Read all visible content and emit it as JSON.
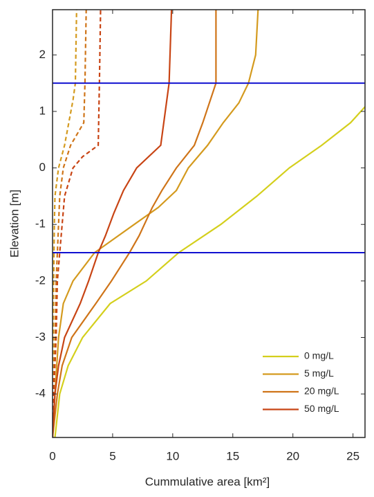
{
  "chart_data": {
    "type": "line",
    "xlabel": "Cummulative area [km²]",
    "ylabel": "Elevation [m]",
    "xlim": [
      0,
      26
    ],
    "ylim": [
      -4.77,
      2.8
    ],
    "xticks": [
      0,
      5,
      10,
      15,
      20,
      25
    ],
    "yticks": [
      -4,
      -3,
      -2,
      -1,
      0,
      1,
      2
    ],
    "hlines": {
      "color": "#1010d0",
      "values": [
        1.5,
        -1.5
      ]
    },
    "legend": "lower right",
    "series": [
      {
        "name": "0 mg/L",
        "color": "#d4cf1c",
        "x": [
          0.2,
          0.6,
          1.3,
          2.5,
          4.8,
          7.8,
          10.5,
          14,
          17,
          19.7,
          22.4,
          24.8,
          26.5,
          26.7,
          26.8,
          26.8
        ],
        "y": [
          -4.77,
          -4,
          -3.5,
          -3,
          -2.4,
          -2,
          -1.5,
          -1,
          -0.5,
          0,
          0.4,
          0.8,
          1.2,
          1.5,
          2,
          2.8
        ]
      },
      {
        "name": "5 mg/L",
        "color": "#d49a1e",
        "x": [
          0,
          0.2,
          0.5,
          0.9,
          1.7,
          3.5,
          6.8,
          8.8,
          10.3,
          11.3,
          12.9,
          14.2,
          15.5,
          16.3,
          16.9,
          17.1
        ],
        "y": [
          -4.77,
          -4,
          -3,
          -2.4,
          -2,
          -1.5,
          -1,
          -0.7,
          -0.4,
          0,
          0.4,
          0.8,
          1.15,
          1.5,
          2,
          2.8
        ]
      },
      {
        "name": "20 mg/L",
        "color": "#cf7418",
        "x": [
          0,
          0.4,
          0.8,
          1.6,
          3.6,
          4.9,
          6.4,
          7.2,
          8.3,
          9.1,
          10.3,
          11.8,
          12.5,
          13.6,
          13.6
        ],
        "y": [
          -4.77,
          -4,
          -3.5,
          -3,
          -2.4,
          -2,
          -1.5,
          -1.2,
          -0.7,
          -0.4,
          0,
          0.4,
          0.8,
          1.5,
          2.8
        ]
      },
      {
        "name": "50 mg/L",
        "color": "#c84414",
        "x": [
          0,
          0.2,
          0.5,
          1,
          2.3,
          3,
          3.8,
          4.4,
          5.1,
          5.9,
          7,
          9,
          9.7,
          9.9
        ],
        "y": [
          -4.77,
          -4,
          -3.5,
          -3,
          -2.4,
          -2,
          -1.5,
          -1.2,
          -0.8,
          -0.4,
          0,
          0.4,
          1.5,
          2.8
        ]
      }
    ],
    "dashed_series": [
      {
        "color": "#d49a1e",
        "x": [
          0,
          0.05,
          0.1,
          0.15,
          0.2,
          0.5,
          1,
          1.7,
          1.9,
          2
        ],
        "y": [
          -4.77,
          -3,
          -2,
          -1,
          -0.5,
          0,
          0.4,
          1.2,
          1.5,
          2.8
        ]
      },
      {
        "color": "#cf7418",
        "x": [
          0,
          0.2,
          0.3,
          0.4,
          0.6,
          0.9,
          1.5,
          2.6,
          2.7,
          2.8
        ],
        "y": [
          -4.77,
          -3,
          -2,
          -1.5,
          -0.5,
          0,
          0.4,
          0.8,
          1.5,
          2.8
        ]
      },
      {
        "color": "#c84414",
        "x": [
          0,
          0.1,
          0.3,
          0.4,
          0.6,
          0.8,
          1,
          1.7,
          2.5,
          3.8,
          3.9,
          4
        ],
        "y": [
          -4.77,
          -4,
          -3,
          -2,
          -1.5,
          -1,
          -0.5,
          0,
          0.2,
          0.4,
          1.5,
          2.8
        ]
      }
    ]
  }
}
